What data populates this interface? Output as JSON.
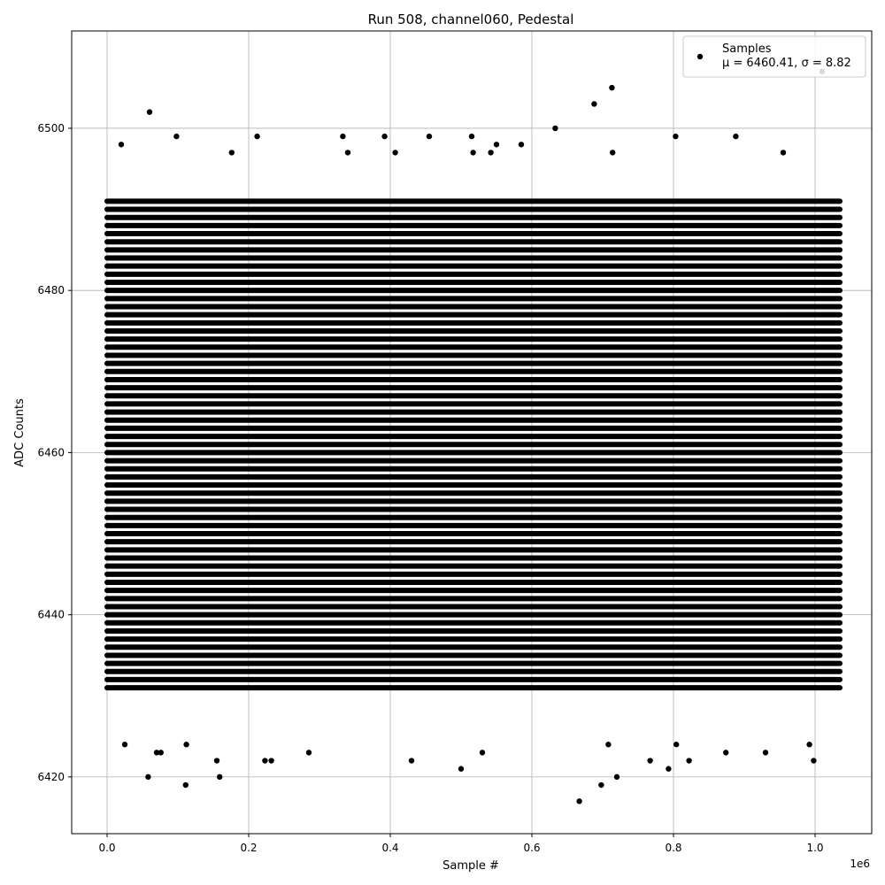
{
  "chart_data": {
    "type": "scatter",
    "title": "Run 508, channel060, Pedestal",
    "xlabel": "Sample #",
    "ylabel": "ADC Counts",
    "x_offset_label": "1e6",
    "xlim": [
      -0.05,
      1.08
    ],
    "ylim": [
      6413,
      6512
    ],
    "x_ticks": [
      0.0,
      0.2,
      0.4,
      0.6,
      0.8,
      1.0
    ],
    "x_tick_labels": [
      "0.0",
      "0.2",
      "0.4",
      "0.6",
      "0.8",
      "1.0"
    ],
    "y_ticks": [
      6420,
      6440,
      6460,
      6480,
      6500
    ],
    "y_tick_labels": [
      "6420",
      "6440",
      "6460",
      "6480",
      "6500"
    ],
    "grid": true,
    "legend_position": "top-right",
    "series": [
      {
        "name": "Samples",
        "stats_label": "μ = 6460.41, σ = 8.82",
        "color": "#000000",
        "marker": "circle",
        "x_range": [
          0.0,
          1.035
        ],
        "dense_band": [
          6431,
          6491
        ],
        "outliers": [
          {
            "x": 0.06,
            "y": 6502
          },
          {
            "x": 0.098,
            "y": 6499
          },
          {
            "x": 0.212,
            "y": 6499
          },
          {
            "x": 0.333,
            "y": 6499
          },
          {
            "x": 0.392,
            "y": 6499
          },
          {
            "x": 0.455,
            "y": 6499
          },
          {
            "x": 0.515,
            "y": 6499
          },
          {
            "x": 0.633,
            "y": 6500
          },
          {
            "x": 0.688,
            "y": 6503
          },
          {
            "x": 0.713,
            "y": 6505
          },
          {
            "x": 0.803,
            "y": 6499
          },
          {
            "x": 0.888,
            "y": 6499
          },
          {
            "x": 1.01,
            "y": 6507
          },
          {
            "x": 0.176,
            "y": 6497
          },
          {
            "x": 0.34,
            "y": 6497
          },
          {
            "x": 0.407,
            "y": 6497
          },
          {
            "x": 0.517,
            "y": 6497
          },
          {
            "x": 0.542,
            "y": 6497
          },
          {
            "x": 0.585,
            "y": 6498
          },
          {
            "x": 0.714,
            "y": 6497
          },
          {
            "x": 0.955,
            "y": 6497
          },
          {
            "x": 0.02,
            "y": 6498
          },
          {
            "x": 0.55,
            "y": 6498
          },
          {
            "x": 0.058,
            "y": 6420
          },
          {
            "x": 0.111,
            "y": 6419
          },
          {
            "x": 0.159,
            "y": 6420
          },
          {
            "x": 0.155,
            "y": 6422
          },
          {
            "x": 0.223,
            "y": 6422
          },
          {
            "x": 0.232,
            "y": 6422
          },
          {
            "x": 0.43,
            "y": 6422
          },
          {
            "x": 0.5,
            "y": 6421
          },
          {
            "x": 0.667,
            "y": 6417
          },
          {
            "x": 0.698,
            "y": 6419
          },
          {
            "x": 0.72,
            "y": 6420
          },
          {
            "x": 0.767,
            "y": 6422
          },
          {
            "x": 0.793,
            "y": 6421
          },
          {
            "x": 0.822,
            "y": 6422
          },
          {
            "x": 0.998,
            "y": 6422
          },
          {
            "x": 0.025,
            "y": 6424
          },
          {
            "x": 0.07,
            "y": 6423
          },
          {
            "x": 0.076,
            "y": 6423
          },
          {
            "x": 0.112,
            "y": 6424
          },
          {
            "x": 0.285,
            "y": 6423
          },
          {
            "x": 0.53,
            "y": 6423
          },
          {
            "x": 0.708,
            "y": 6424
          },
          {
            "x": 0.804,
            "y": 6424
          },
          {
            "x": 0.874,
            "y": 6423
          },
          {
            "x": 0.93,
            "y": 6423
          },
          {
            "x": 0.992,
            "y": 6424
          }
        ]
      }
    ]
  }
}
